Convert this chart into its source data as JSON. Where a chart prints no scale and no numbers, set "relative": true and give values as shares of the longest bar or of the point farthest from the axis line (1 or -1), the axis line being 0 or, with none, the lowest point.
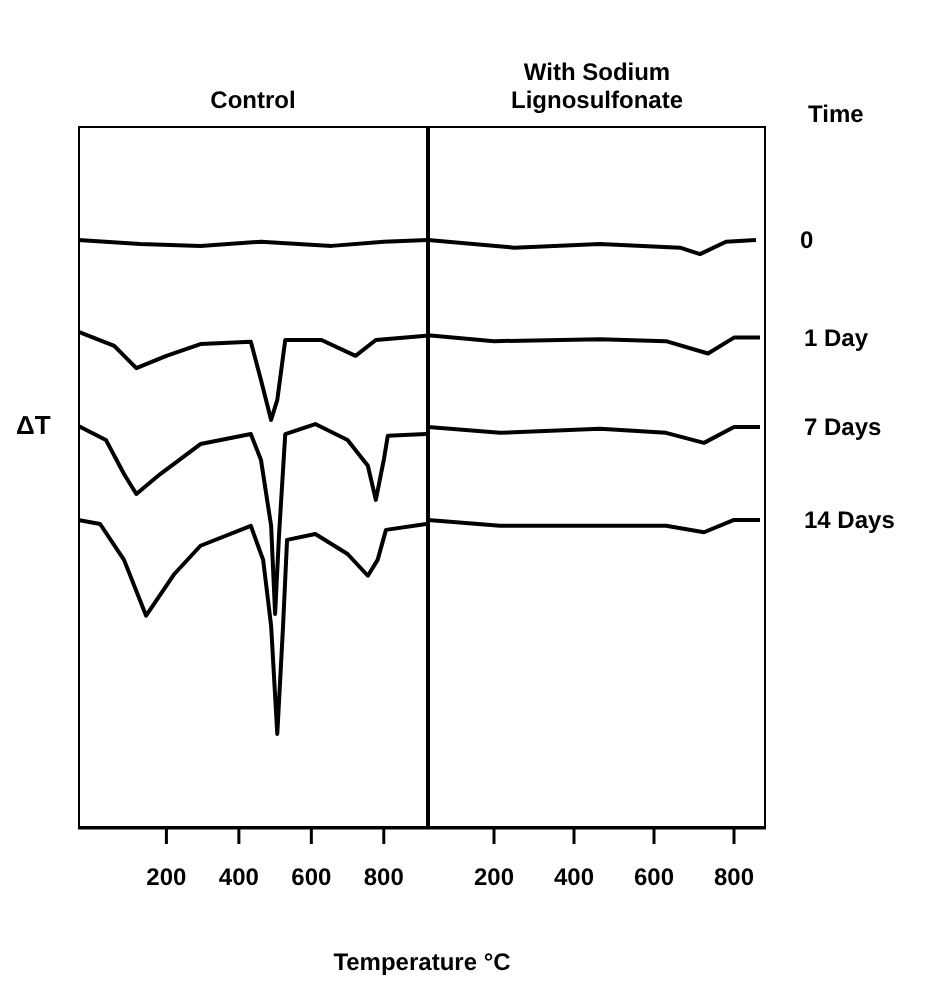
{
  "chart_data": [
    {
      "type": "line",
      "title": "Control",
      "ylabel": "ΔT",
      "xlabel": "Temperature °C",
      "relative": true,
      "xlim": [
        -44,
        922
      ],
      "xticks": [
        200,
        400,
        600,
        800
      ],
      "tick_labels": "x",
      "marker": "none",
      "line_style": "solid",
      "series": [
        {
          "color": "#000000",
          "x": [
            -44,
            128,
            294,
            461,
            656,
            800,
            922
          ],
          "values": [
            1.0,
            0.993,
            0.99,
            0.997,
            0.99,
            0.997,
            1.0
          ]
        },
        {
          "color": "#000000",
          "x": [
            -44,
            56,
            117,
            200,
            294,
            433,
            461,
            489,
            506,
            528,
            628,
            722,
            778,
            917
          ],
          "values": [
            0.844,
            0.82,
            0.782,
            0.803,
            0.823,
            0.827,
            0.762,
            0.694,
            0.728,
            0.83,
            0.83,
            0.803,
            0.83,
            0.837
          ]
        },
        {
          "color": "#000000",
          "x": [
            -44,
            33,
            83,
            117,
            183,
            294,
            433,
            461,
            489,
            500,
            511,
            528,
            611,
            700,
            756,
            778,
            800,
            811,
            917
          ],
          "values": [
            0.684,
            0.66,
            0.602,
            0.568,
            0.602,
            0.653,
            0.67,
            0.626,
            0.514,
            0.364,
            0.5,
            0.67,
            0.687,
            0.66,
            0.616,
            0.558,
            0.626,
            0.667,
            0.67
          ]
        },
        {
          "color": "#000000",
          "x": [
            -44,
            17,
            83,
            144,
            222,
            294,
            433,
            467,
            489,
            506,
            522,
            533,
            611,
            700,
            756,
            783,
            806,
            917
          ],
          "values": [
            0.524,
            0.517,
            0.456,
            0.361,
            0.432,
            0.48,
            0.514,
            0.456,
            0.344,
            0.16,
            0.344,
            0.49,
            0.5,
            0.466,
            0.429,
            0.456,
            0.507,
            0.517
          ]
        }
      ]
    },
    {
      "type": "line",
      "title": "With Sodium Lignosulfonate",
      "legend_title": "Time",
      "relative": true,
      "xlim": [
        35,
        880
      ],
      "xticks": [
        200,
        400,
        600,
        800
      ],
      "tick_labels": "x",
      "marker": "none",
      "line_style": "solid",
      "series": [
        {
          "name": "0",
          "color": "#000000",
          "x": [
            35,
            250,
            465,
            665,
            715,
            780,
            855
          ],
          "values": [
            1.0,
            0.987,
            0.993,
            0.987,
            0.976,
            0.997,
            1.0
          ]
        },
        {
          "name": "1 Day",
          "color": "#000000",
          "x": [
            35,
            200,
            465,
            630,
            735,
            800,
            865
          ],
          "values": [
            0.838,
            0.828,
            0.831,
            0.828,
            0.807,
            0.834,
            0.834
          ]
        },
        {
          "name": "7 Days",
          "color": "#000000",
          "x": [
            35,
            215,
            465,
            630,
            725,
            800,
            865
          ],
          "values": [
            0.682,
            0.672,
            0.679,
            0.672,
            0.655,
            0.682,
            0.682
          ]
        },
        {
          "name": "14 Days",
          "color": "#000000",
          "x": [
            35,
            215,
            465,
            630,
            725,
            800,
            865
          ],
          "values": [
            0.524,
            0.514,
            0.514,
            0.514,
            0.503,
            0.524,
            0.524
          ]
        }
      ]
    }
  ]
}
